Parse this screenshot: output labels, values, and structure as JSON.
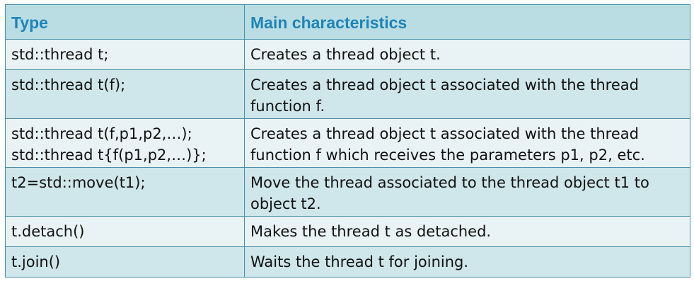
{
  "table": {
    "headers": {
      "type": "Type",
      "characteristics": "Main characteristics"
    },
    "rows": [
      {
        "type_lines": [
          "std::thread t;"
        ],
        "desc_lines": [
          "Creates a thread object t."
        ]
      },
      {
        "type_lines": [
          "std::thread t(f);"
        ],
        "desc_lines": [
          "Creates a thread object t associated with the thread",
          "function f."
        ]
      },
      {
        "type_lines": [
          "std::thread t(f,p1,p2,…);",
          "std::thread t{f(p1,p2,…)};"
        ],
        "desc_lines": [
          "Creates a thread object t associated with the thread",
          "function f which receives the parameters p1, p2, etc."
        ]
      },
      {
        "type_lines": [
          "t2=std::move(t1);"
        ],
        "desc_lines": [
          "Move the thread associated to the thread object t1 to",
          "object t2."
        ]
      },
      {
        "type_lines": [
          "t.detach()"
        ],
        "desc_lines": [
          "Makes the thread t as detached."
        ]
      },
      {
        "type_lines": [
          "t.join()"
        ],
        "desc_lines": [
          "Waits the thread t for joining."
        ]
      }
    ]
  },
  "colors": {
    "header_bg": "#b9dde2",
    "header_text": "#1f84b8",
    "row_light": "#e9f3f5",
    "row_dark": "#cfe6ea",
    "border": "#4a8fa8"
  }
}
